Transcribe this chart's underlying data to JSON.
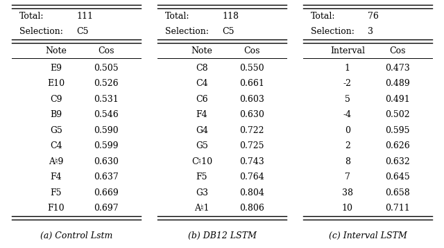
{
  "table_a": {
    "title_rows": [
      [
        "Total:",
        "111"
      ],
      [
        "Selection:",
        "C5"
      ]
    ],
    "headers": [
      "Note",
      "Cos"
    ],
    "rows": [
      [
        "E9",
        "0.505"
      ],
      [
        "E10",
        "0.526"
      ],
      [
        "C9",
        "0.531"
      ],
      [
        "B9",
        "0.546"
      ],
      [
        "G5",
        "0.590"
      ],
      [
        "C4",
        "0.599"
      ],
      [
        "A♮9",
        "0.630"
      ],
      [
        "F4",
        "0.637"
      ],
      [
        "F5",
        "0.669"
      ],
      [
        "F10",
        "0.697"
      ]
    ],
    "caption": "(a) Control Lstm"
  },
  "table_b": {
    "title_rows": [
      [
        "Total:",
        "118"
      ],
      [
        "Selection:",
        "C5"
      ]
    ],
    "headers": [
      "Note",
      "Cos"
    ],
    "rows": [
      [
        "C8",
        "0.550"
      ],
      [
        "C4",
        "0.661"
      ],
      [
        "C6",
        "0.603"
      ],
      [
        "F4",
        "0.630"
      ],
      [
        "G4",
        "0.722"
      ],
      [
        "G5",
        "0.725"
      ],
      [
        "C♮10",
        "0.743"
      ],
      [
        "F5",
        "0.764"
      ],
      [
        "G3",
        "0.804"
      ],
      [
        "A♮1",
        "0.806"
      ]
    ],
    "caption": "(b) DB12 LSTM"
  },
  "table_c": {
    "title_rows": [
      [
        "Total:",
        "76"
      ],
      [
        "Selection:",
        "3"
      ]
    ],
    "headers": [
      "Interval",
      "Cos"
    ],
    "rows": [
      [
        "1",
        "0.473"
      ],
      [
        "-2",
        "0.489"
      ],
      [
        "5",
        "0.491"
      ],
      [
        "-4",
        "0.502"
      ],
      [
        "0",
        "0.595"
      ],
      [
        "2",
        "0.626"
      ],
      [
        "8",
        "0.632"
      ],
      [
        "7",
        "0.645"
      ],
      [
        "38",
        "0.658"
      ],
      [
        "10",
        "0.711"
      ]
    ],
    "caption": "(c) Interval LSTM"
  },
  "font_size": 9,
  "caption_font_size": 9,
  "bg_color": "#ffffff",
  "text_color": "#000000"
}
